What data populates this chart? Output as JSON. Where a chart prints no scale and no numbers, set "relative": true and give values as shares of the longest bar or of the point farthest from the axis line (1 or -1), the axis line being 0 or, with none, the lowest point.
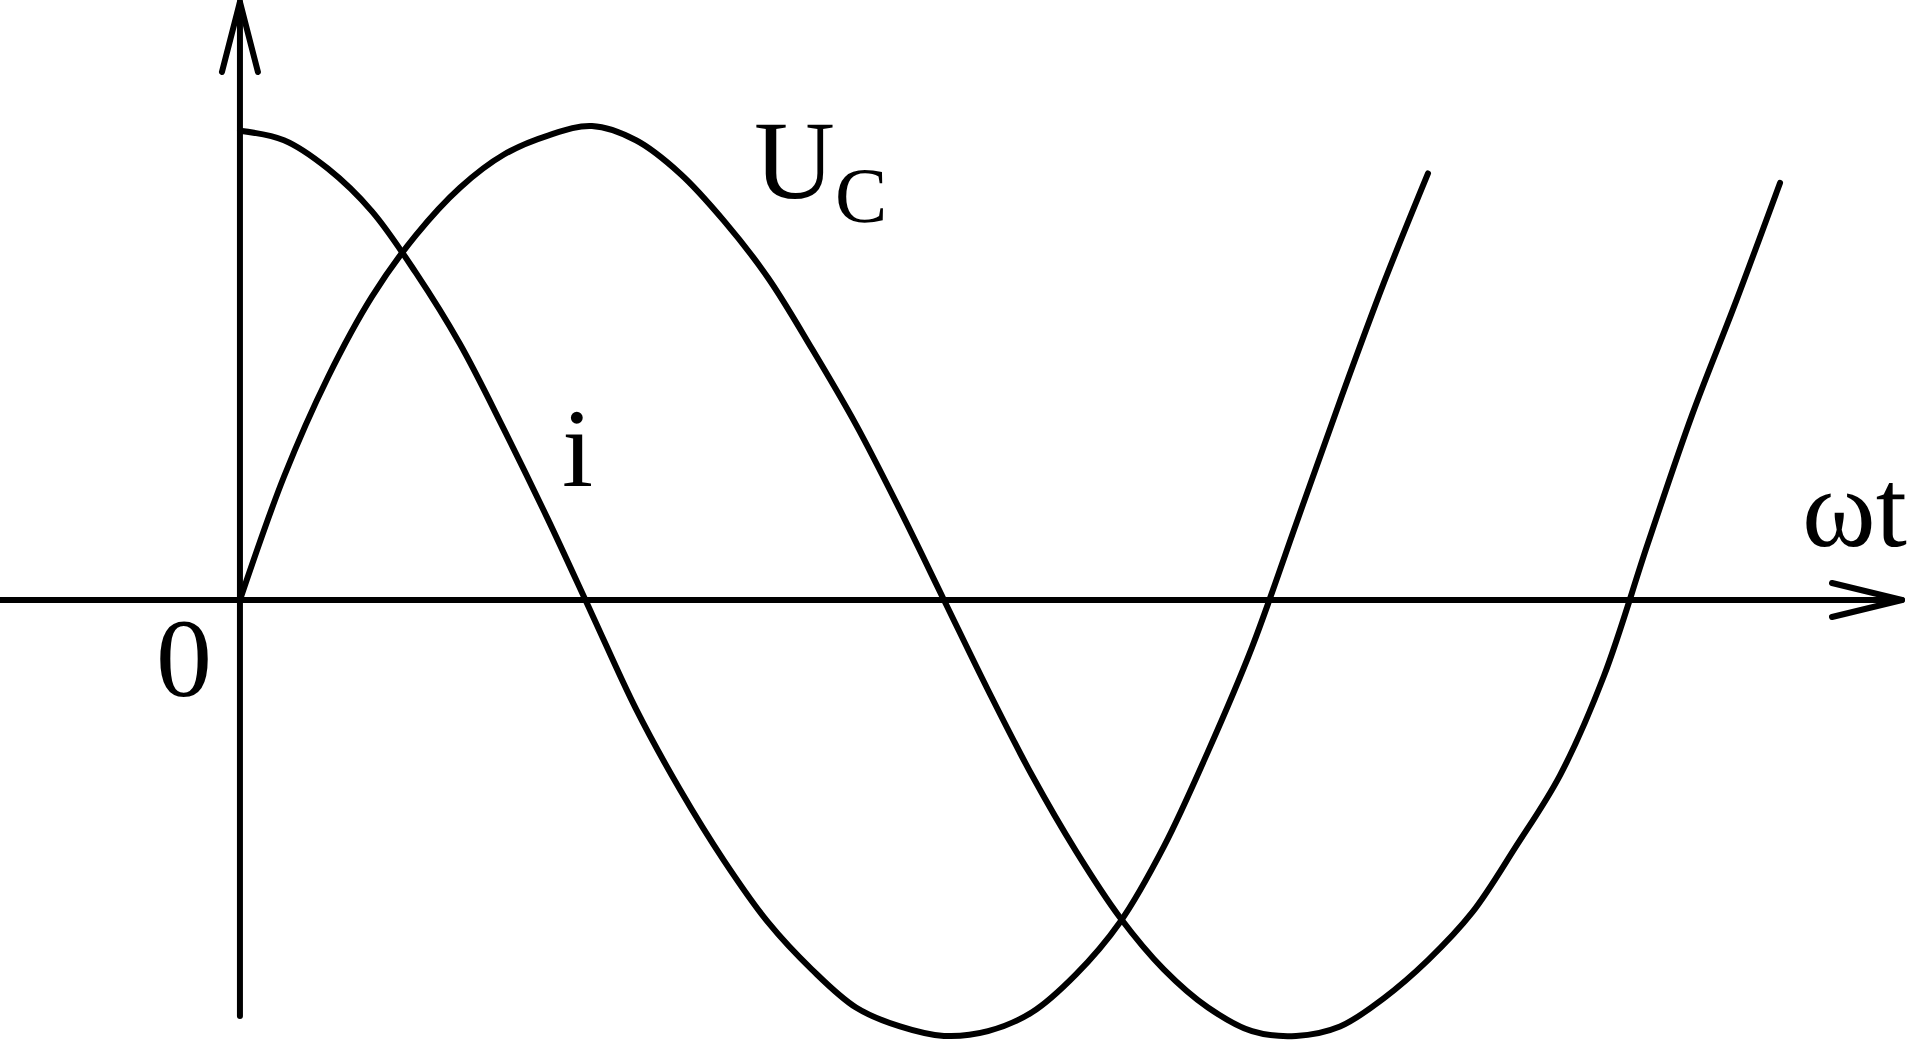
{
  "chart_data": {
    "type": "line",
    "relative": true,
    "xlabel": "ωt",
    "categories": [
      null,
      null,
      null,
      null,
      null,
      null,
      null,
      null,
      null,
      null,
      null,
      null,
      null,
      null,
      null,
      null,
      null,
      null,
      null,
      null,
      null,
      null,
      null,
      null,
      null,
      null,
      null,
      null,
      null,
      null,
      null,
      null,
      null,
      null,
      null,
      null
    ],
    "series": [
      {
        "name": "U$_{C}$",
        "color": "#000000",
        "values": [
          0,
          0.26,
          0.47,
          0.64,
          0.77,
          0.87,
          0.94,
          0.98,
          1.0,
          0.97,
          0.9,
          0.8,
          0.68,
          0.53,
          0.37,
          0.19,
          0,
          -0.19,
          -0.37,
          -0.53,
          -0.67,
          -0.78,
          -0.86,
          -0.91,
          -0.92,
          -0.9,
          -0.84,
          -0.76,
          -0.66,
          -0.52,
          -0.37,
          -0.16,
          0.12,
          0.39,
          0.63,
          0.88
        ]
      },
      {
        "name": "i",
        "color": "#000000",
        "values": [
          0.99,
          0.97,
          0.91,
          0.82,
          0.69,
          0.54,
          0.36,
          0.17,
          -0.03,
          -0.23,
          -0.4,
          -0.55,
          -0.68,
          -0.78,
          -0.86,
          -0.9,
          -0.92,
          -0.91,
          -0.87,
          -0.79,
          -0.68,
          -0.52,
          -0.32,
          -0.1,
          0.16,
          0.42,
          0.67,
          0.9,
          null,
          null,
          null,
          null,
          null,
          null,
          null,
          null
        ]
      }
    ],
    "annotations": [
      "0"
    ]
  }
}
